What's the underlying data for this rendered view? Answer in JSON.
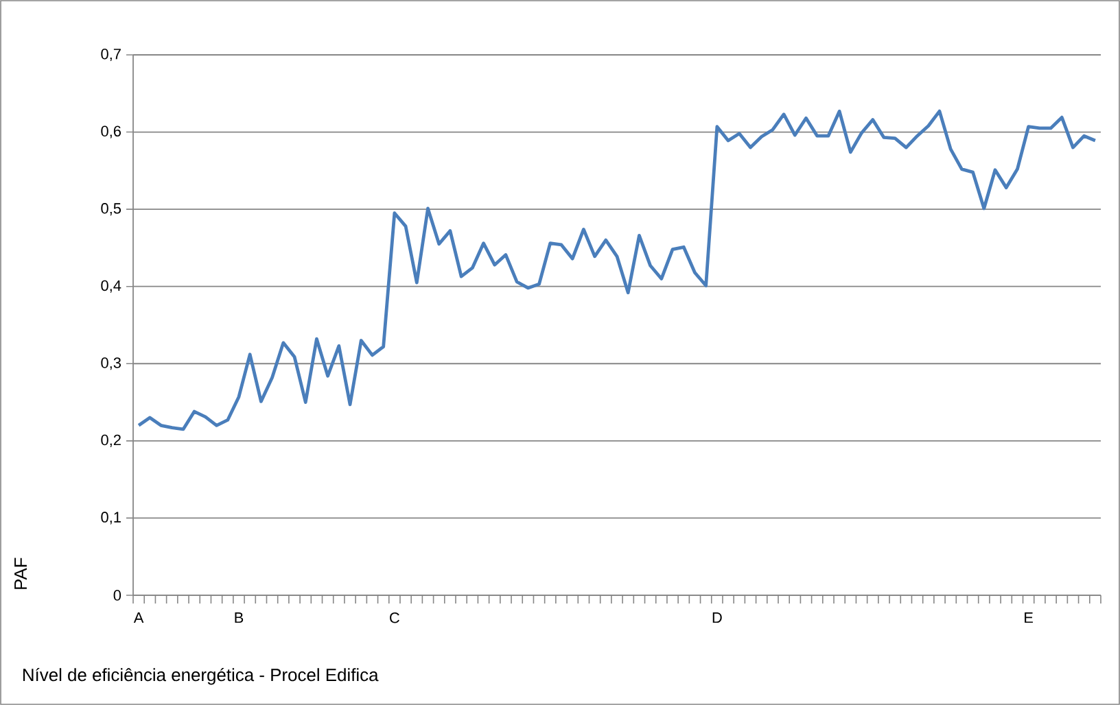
{
  "chart_data": {
    "type": "line",
    "xlabel": "Nível de eficiência energética - Procel Edifica",
    "ylabel": "PAF",
    "categories": [
      "A",
      null,
      null,
      null,
      null,
      null,
      null,
      null,
      null,
      "B",
      null,
      null,
      null,
      null,
      null,
      null,
      null,
      null,
      null,
      null,
      null,
      null,
      null,
      "C",
      null,
      null,
      null,
      null,
      null,
      null,
      null,
      null,
      null,
      null,
      null,
      null,
      null,
      null,
      null,
      null,
      null,
      null,
      null,
      null,
      null,
      null,
      null,
      null,
      null,
      null,
      null,
      null,
      "D",
      null,
      null,
      null,
      null,
      null,
      null,
      null,
      null,
      null,
      null,
      null,
      null,
      null,
      null,
      null,
      null,
      null,
      null,
      null,
      null,
      null,
      null,
      null,
      null,
      null,
      null,
      null,
      "E",
      null,
      null,
      null,
      null,
      null,
      null
    ],
    "series": [
      {
        "color": "#4a7ebb",
        "values": [
          0.22,
          0.23,
          0.22,
          0.217,
          0.215,
          0.238,
          0.231,
          0.22,
          0.227,
          0.257,
          0.312,
          0.251,
          0.282,
          0.327,
          0.309,
          0.25,
          0.332,
          0.284,
          0.323,
          0.247,
          0.33,
          0.311,
          0.322,
          0.495,
          0.478,
          0.405,
          0.501,
          0.455,
          0.472,
          0.413,
          0.424,
          0.456,
          0.428,
          0.441,
          0.406,
          0.398,
          0.403,
          0.456,
          0.454,
          0.436,
          0.474,
          0.439,
          0.46,
          0.439,
          0.392,
          0.466,
          0.427,
          0.41,
          0.448,
          0.451,
          0.418,
          0.401,
          0.607,
          0.589,
          0.598,
          0.58,
          0.594,
          0.603,
          0.623,
          0.596,
          0.618,
          0.595,
          0.595,
          0.627,
          0.574,
          0.599,
          0.616,
          0.593,
          0.592,
          0.58,
          0.595,
          0.608,
          0.627,
          0.578,
          0.552,
          0.548,
          0.501,
          0.551,
          0.528,
          0.552,
          0.607,
          0.605,
          0.605,
          0.619,
          0.58,
          0.595,
          0.589
        ]
      }
    ],
    "ylim": [
      0,
      0.7
    ],
    "yticks": [
      {
        "value": 0,
        "label": "0"
      },
      {
        "value": 0.1,
        "label": "0,1"
      },
      {
        "value": 0.2,
        "label": "0,2"
      },
      {
        "value": 0.3,
        "label": "0,3"
      },
      {
        "value": 0.4,
        "label": "0,4"
      },
      {
        "value": 0.5,
        "label": "0,5"
      },
      {
        "value": 0.6,
        "label": "0,6"
      },
      {
        "value": 0.7,
        "label": "0,7"
      }
    ],
    "grid": "y",
    "marker": "none",
    "line_style": "solid"
  }
}
